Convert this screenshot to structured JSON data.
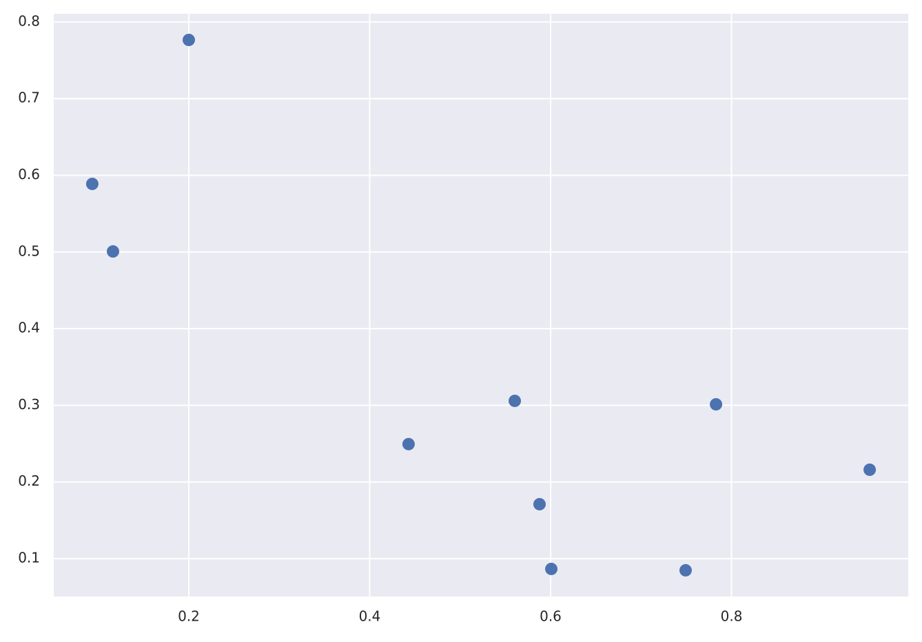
{
  "chart_data": {
    "type": "scatter",
    "x": [
      0.0933,
      0.1162,
      0.2,
      0.443,
      0.5604,
      0.5878,
      0.6008,
      0.7493,
      0.7829,
      0.9528
    ],
    "series": [
      {
        "color": "#4c72b0",
        "values": [
          0.5888,
          0.5007,
          0.7766,
          0.2494,
          0.3058,
          0.171,
          0.0866,
          0.0848,
          0.3013,
          0.216
        ]
      }
    ],
    "xlim": [
      0.0507,
      0.9954
    ],
    "ylim": [
      0.0506,
      0.8107
    ],
    "xticks": [
      0.2,
      0.4,
      0.6,
      0.8
    ],
    "yticks": [
      0.1,
      0.2,
      0.3,
      0.4,
      0.5,
      0.6,
      0.7,
      0.8
    ],
    "grid": true
  }
}
